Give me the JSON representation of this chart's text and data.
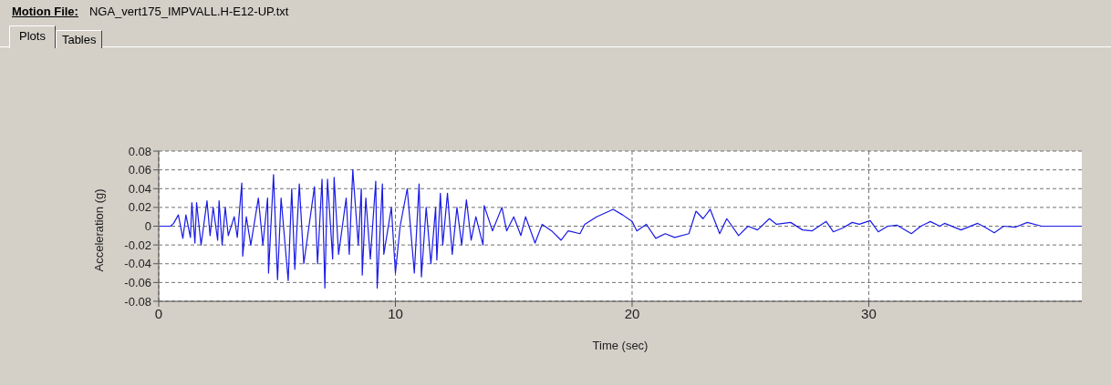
{
  "chart_data": {
    "type": "line",
    "title": "Motion File:",
    "subtitle": "NGA_vert175_IMPVALL.H-E12-UP.txt",
    "annotations": [
      "Plots",
      "Tables"
    ],
    "xlabel": "Time (sec)",
    "ylabel": "Acceleration (g)",
    "x": [
      0,
      0.5,
      0.63,
      0.83,
      1.02,
      1.15,
      1.34,
      1.4,
      1.53,
      1.6,
      1.79,
      2.04,
      2.17,
      2.3,
      2.49,
      2.55,
      2.68,
      2.81,
      2.94,
      3.19,
      3.32,
      3.51,
      3.55,
      3.7,
      3.89,
      4.21,
      4.4,
      4.6,
      4.64,
      4.85,
      5.02,
      5.17,
      5.47,
      5.62,
      5.75,
      5.94,
      6.13,
      6.58,
      6.71,
      6.9,
      7.02,
      7.13,
      7.35,
      7.41,
      7.6,
      7.92,
      8.05,
      8.2,
      8.43,
      8.56,
      8.6,
      8.75,
      8.94,
      9.17,
      9.23,
      9.45,
      9.51,
      9.83,
      10,
      10.2,
      10.5,
      10.8,
      11.0,
      11.1,
      11.3,
      11.5,
      11.7,
      11.75,
      11.9,
      12.0,
      12.2,
      12.4,
      12.6,
      12.8,
      13.0,
      13.2,
      13.4,
      13.7,
      13.75,
      14.1,
      14.5,
      14.7,
      15.0,
      15.3,
      15.5,
      15.9,
      16.2,
      16.6,
      17.0,
      17.3,
      17.8,
      18.0,
      18.5,
      19.2,
      19.6,
      20,
      20.2,
      20.6,
      21.0,
      21.4,
      21.8,
      22.4,
      22.7,
      23.0,
      23.3,
      23.7,
      24.0,
      24.5,
      24.9,
      25.3,
      25.8,
      26.1,
      26.7,
      27.2,
      27.6,
      28.2,
      28.5,
      28.9,
      29.3,
      29.6,
      30.06,
      30.4,
      30.8,
      31.2,
      31.8,
      32.2,
      32.6,
      33.0,
      33.2,
      33.9,
      34.6,
      34.9,
      35.3,
      35.7,
      36.2,
      36.7,
      37.3,
      39
    ],
    "series": [
      {
        "color": "#1a1ae6",
        "values": [
          0,
          0,
          0.003,
          0.012,
          -0.013,
          0.012,
          -0.012,
          0.025,
          -0.018,
          0.025,
          -0.02,
          0.027,
          -0.01,
          0.02,
          -0.015,
          0.027,
          -0.02,
          0.02,
          -0.01,
          0.01,
          -0.012,
          0.046,
          -0.032,
          0.01,
          -0.02,
          0.03,
          -0.02,
          0.03,
          -0.05,
          0.055,
          -0.057,
          0.03,
          -0.058,
          0.04,
          -0.046,
          0.045,
          -0.04,
          0.042,
          -0.04,
          0.05,
          -0.066,
          0.05,
          -0.035,
          0.052,
          -0.03,
          0.03,
          -0.03,
          0.06,
          -0.02,
          0.04,
          -0.052,
          0.03,
          -0.035,
          0.048,
          -0.066,
          0.045,
          -0.03,
          0.02,
          -0.05,
          0,
          0.04,
          -0.05,
          0.045,
          -0.054,
          0.02,
          -0.04,
          0.02,
          -0.036,
          0.035,
          -0.02,
          0.035,
          -0.03,
          0.02,
          -0.02,
          0.028,
          -0.015,
          0.01,
          -0.02,
          0.022,
          -0.005,
          0.02,
          -0.005,
          0.01,
          -0.01,
          0.01,
          -0.018,
          0.002,
          -0.005,
          -0.015,
          -0.005,
          -0.008,
          0.002,
          0.01,
          0.018,
          0.012,
          0.005,
          -0.005,
          0.002,
          -0.013,
          -0.008,
          -0.012,
          -0.008,
          0.016,
          0.008,
          0.018,
          -0.008,
          0.008,
          -0.01,
          0,
          -0.004,
          0.008,
          0.002,
          0.004,
          -0.004,
          -0.005,
          0.005,
          -0.006,
          -0.002,
          0.004,
          0.002,
          0.006,
          -0.006,
          0,
          0.001,
          -0.008,
          0,
          0.005,
          0,
          0.003,
          -0.004,
          0.003,
          -0.001,
          -0.007,
          0,
          -0.001,
          0.004,
          0,
          0
        ]
      }
    ],
    "xlim": [
      0,
      39
    ],
    "xticks": [
      0,
      10,
      20,
      30
    ],
    "ylim": [
      -0.08,
      0.08
    ],
    "yticks": [
      -0.08,
      -0.06,
      -0.04,
      -0.02,
      0,
      0.02,
      0.04,
      0.06,
      0.08
    ],
    "grid": true,
    "legend": false,
    "marker": "none",
    "line_style": "solid"
  }
}
